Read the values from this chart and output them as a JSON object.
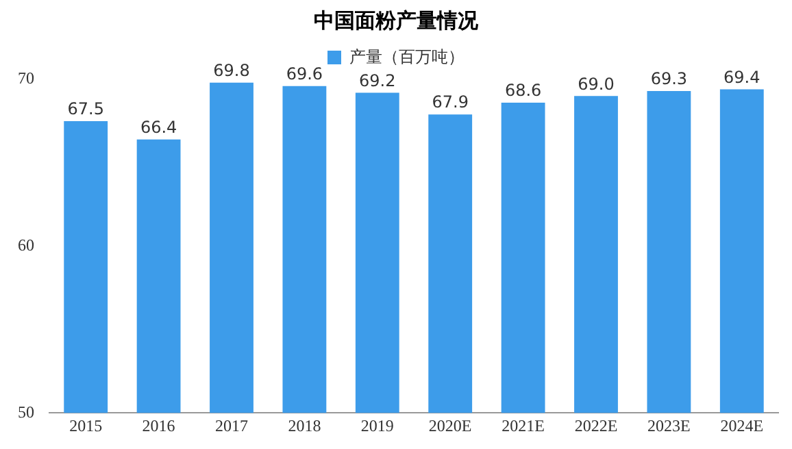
{
  "chart_data": {
    "type": "bar",
    "title": "中国面粉产量情况",
    "categories": [
      "2015",
      "2016",
      "2017",
      "2018",
      "2019",
      "2020E",
      "2021E",
      "2022E",
      "2023E",
      "2024E"
    ],
    "series": [
      {
        "name": "产量（百万吨）",
        "color": "#3d9cea",
        "values": [
          67.5,
          66.4,
          69.8,
          69.6,
          69.2,
          67.9,
          68.6,
          69.0,
          69.3,
          69.4
        ],
        "value_labels": [
          "67.5",
          "66.4",
          "69.8",
          "69.6",
          "69.2",
          "67.9",
          "68.6",
          "69.0",
          "69.3",
          "69.4"
        ]
      }
    ],
    "ylim": [
      50,
      70
    ],
    "yticks": [
      50,
      60,
      70
    ],
    "grid": false,
    "legend": "top"
  }
}
